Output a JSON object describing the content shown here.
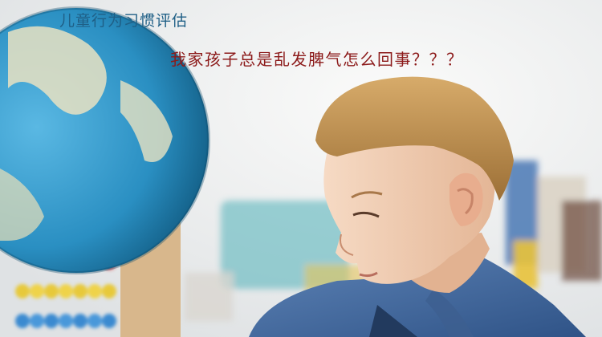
{
  "overlay_text": {
    "title": "儿童行为习惯评估",
    "question": "我家孩子总是乱发脾气怎么回事？？？"
  },
  "colors": {
    "title_text": "#1f5f86",
    "question_text": "#8c1a1a",
    "background": "#f2f2f0",
    "globe_ocean": "#2a93c4",
    "hair": "#b98a4a",
    "skin": "#f0cdb3",
    "denim_shirt": "#4d74a8"
  },
  "scene": {
    "subject": "boy-in-denim-shirt-looking-down",
    "props": [
      "world-globe",
      "wooden-abacus",
      "toy-shelf"
    ]
  }
}
